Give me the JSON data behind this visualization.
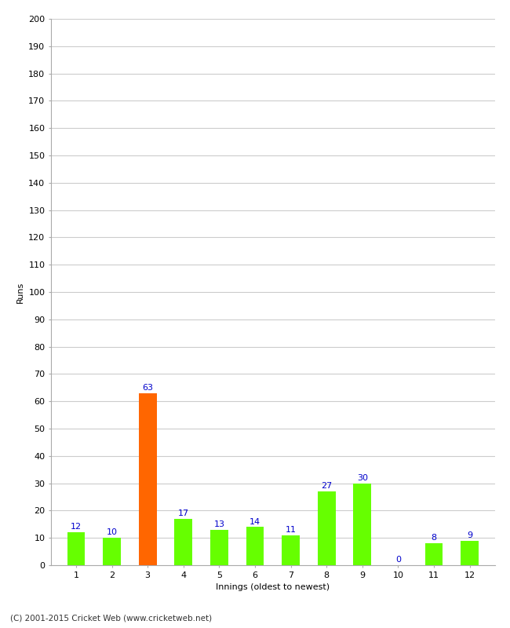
{
  "categories": [
    "1",
    "2",
    "3",
    "4",
    "5",
    "6",
    "7",
    "8",
    "9",
    "10",
    "11",
    "12"
  ],
  "values": [
    12,
    10,
    63,
    17,
    13,
    14,
    11,
    27,
    30,
    0,
    8,
    9
  ],
  "bar_colors": [
    "#66ff00",
    "#66ff00",
    "#ff6600",
    "#66ff00",
    "#66ff00",
    "#66ff00",
    "#66ff00",
    "#66ff00",
    "#66ff00",
    "#66ff00",
    "#66ff00",
    "#66ff00"
  ],
  "xlabel": "Innings (oldest to newest)",
  "ylabel": "Runs",
  "ylim": [
    0,
    200
  ],
  "yticks": [
    0,
    10,
    20,
    30,
    40,
    50,
    60,
    70,
    80,
    90,
    100,
    110,
    120,
    130,
    140,
    150,
    160,
    170,
    180,
    190,
    200
  ],
  "label_color": "#0000cc",
  "label_fontsize": 8,
  "axis_fontsize": 8,
  "background_color": "#ffffff",
  "grid_color": "#cccccc",
  "footer": "(C) 2001-2015 Cricket Web (www.cricketweb.net)",
  "bar_width": 0.5
}
